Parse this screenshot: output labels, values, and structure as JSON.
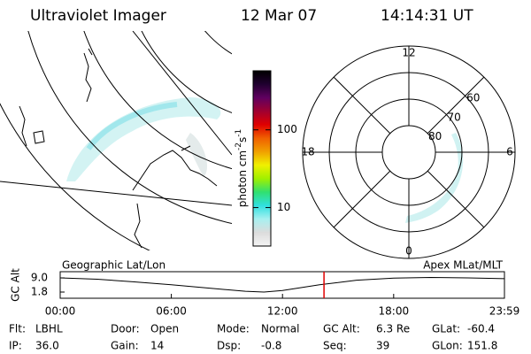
{
  "header": {
    "title": "Ultraviolet Imager",
    "date": "12 Mar 07",
    "time": "14:14:31 UT"
  },
  "colorbar": {
    "label": [
      "photon cm",
      "-2",
      "s",
      "-1"
    ],
    "scale": "log",
    "clim": [
      3.2,
      575
    ],
    "ticks": [
      10,
      100
    ],
    "colors": [
      "#f4f4f4",
      "#dcdcdc",
      "#a8f0f0",
      "#30e0e0",
      "#30e070",
      "#a0f000",
      "#f0f000",
      "#f0a000",
      "#f06000",
      "#e00000",
      "#a00030",
      "#600060",
      "#200030",
      "#000000"
    ]
  },
  "polar": {
    "lat_labels": [
      80,
      70,
      60
    ],
    "mlt_labels": [
      12,
      6,
      0,
      18
    ]
  },
  "geo_panel": {
    "label": "Geographic Lat/Lon"
  },
  "orbit": {
    "ylabel": "GC Alt",
    "right_label": "Apex MLat/MLT",
    "ylim": [
      -1.35,
      12.15
    ],
    "yticks": [
      {
        "value": 9.0,
        "label": "9.0"
      },
      1.8
    ],
    "xlim": [
      0,
      23.98
    ],
    "xticks": [
      {
        "value": 0,
        "label": "00:00"
      },
      {
        "value": 6,
        "label": "06:00"
      },
      {
        "value": 12,
        "label": "12:00"
      },
      {
        "value": 18,
        "label": "18:00"
      },
      {
        "value": 23.98,
        "label": "23:59"
      }
    ],
    "x": [
      0,
      2,
      4,
      6,
      8,
      10,
      11,
      12,
      14,
      16,
      18,
      20,
      22,
      23.98
    ],
    "values": [
      9.0,
      8.3,
      7.0,
      5.5,
      3.8,
      2.2,
      1.8,
      2.6,
      5.5,
      7.8,
      8.9,
      9.2,
      9.0,
      8.6
    ],
    "marker_x": 14.24,
    "marker_color": "#e00000"
  },
  "footer": {
    "rows": [
      [
        [
          "Flt:",
          "LBHL"
        ],
        [
          "Door:",
          "Open"
        ],
        [
          "Mode:",
          "Normal"
        ],
        [
          "GC Alt:",
          "6.3 Re"
        ],
        [
          "GLat:",
          "-60.4"
        ]
      ],
      [
        [
          "IP:",
          "36.0"
        ],
        [
          "Gain:",
          "14"
        ],
        [
          "Dsp:",
          "-0.8"
        ],
        [
          "Seq:",
          "39"
        ],
        [
          "GLon:",
          "151.8"
        ]
      ]
    ]
  }
}
